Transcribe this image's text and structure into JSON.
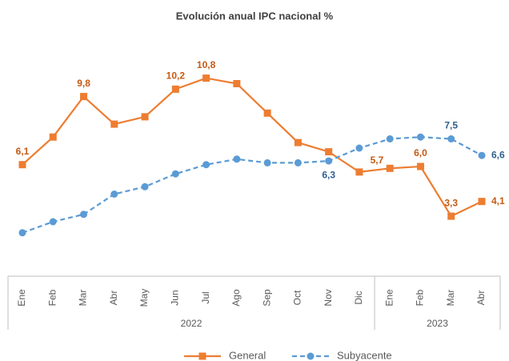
{
  "chart_data": {
    "type": "line",
    "title": "Evolución anual IPC nacional %",
    "categories": [
      "Ene",
      "Feb",
      "Mar",
      "Abr",
      "May",
      "Jun",
      "Jul",
      "Ago",
      "Sep",
      "Oct",
      "Nov",
      "Dic",
      "Ene",
      "Feb",
      "Mar",
      "Abr"
    ],
    "years": [
      "2022",
      "2023"
    ],
    "series": [
      {
        "name": "General",
        "color": "#ED7D31",
        "label_color": "#C55A11",
        "marker": "square",
        "dashed": false,
        "values": [
          6.1,
          7.6,
          9.8,
          8.3,
          8.7,
          10.2,
          10.8,
          10.5,
          8.9,
          7.3,
          6.8,
          5.7,
          5.9,
          6.0,
          3.3,
          4.1
        ],
        "value_labels": [
          "6,1",
          null,
          "9,8",
          null,
          null,
          "10,2",
          "10,8",
          null,
          null,
          null,
          null,
          "5,7",
          null,
          "6,0",
          "3,3",
          "4,1"
        ]
      },
      {
        "name": "Subyacente",
        "color": "#5B9BD5",
        "label_color": "#2F5F8F",
        "marker": "circle",
        "dashed": true,
        "values": [
          2.4,
          3.0,
          3.4,
          4.5,
          4.9,
          5.6,
          6.1,
          6.4,
          6.2,
          6.2,
          6.3,
          7.0,
          7.5,
          7.6,
          7.5,
          6.6
        ],
        "value_labels": [
          null,
          null,
          null,
          null,
          null,
          null,
          null,
          null,
          null,
          null,
          "6,3",
          null,
          null,
          null,
          "7,5",
          "6,6"
        ]
      }
    ]
  }
}
